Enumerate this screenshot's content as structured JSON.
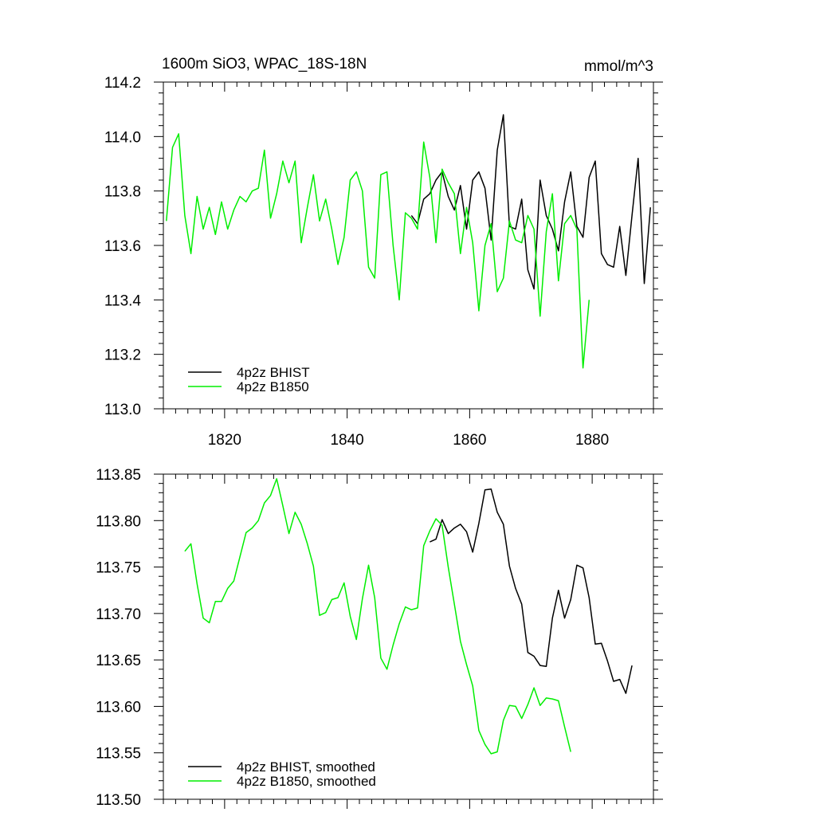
{
  "figure": {
    "title_left": "1600m SiO3, WPAC_18S-18N",
    "title_right": "mmol/m^3"
  },
  "colors": {
    "bhist": "#000000",
    "b1850": "#00ee00"
  },
  "chart_data": [
    {
      "type": "line",
      "title": "1600m SiO3, WPAC_18S-18N",
      "units": "mmol/m^3",
      "xlim": [
        1810,
        1890
      ],
      "ylim": [
        113.0,
        114.2
      ],
      "x_ticks": [
        1820,
        1840,
        1860,
        1880
      ],
      "x_tick_labels": [
        "1820",
        "1840",
        "1860",
        "1880"
      ],
      "y_ticks": [
        113.0,
        113.2,
        113.4,
        113.6,
        113.8,
        114.0,
        114.2
      ],
      "y_tick_labels": [
        "113.0",
        "113.2",
        "113.4",
        "113.6",
        "113.8",
        "114.0",
        "114.2"
      ],
      "grid": false,
      "legend_position": "bottom-left",
      "series": [
        {
          "name": "4p2z BHIST",
          "color_key": "bhist",
          "x": [
            1850.5,
            1851.5,
            1852.5,
            1853.5,
            1854.5,
            1855.5,
            1856.5,
            1857.5,
            1858.5,
            1859.5,
            1860.5,
            1861.5,
            1862.5,
            1863.5,
            1864.5,
            1865.5,
            1866.5,
            1867.5,
            1868.5,
            1869.5,
            1870.5,
            1871.5,
            1872.5,
            1873.5,
            1874.5,
            1875.5,
            1876.5,
            1877.5,
            1878.5,
            1879.5,
            1880.5,
            1881.5,
            1882.5,
            1883.5,
            1884.5,
            1885.5,
            1886.5,
            1887.5,
            1888.5,
            1889.5
          ],
          "y": [
            113.71,
            113.68,
            113.77,
            113.79,
            113.84,
            113.87,
            113.78,
            113.73,
            113.82,
            113.66,
            113.84,
            113.87,
            113.81,
            113.62,
            113.95,
            114.08,
            113.67,
            113.66,
            113.77,
            113.51,
            113.44,
            113.84,
            113.71,
            113.66,
            113.58,
            113.76,
            113.87,
            113.67,
            113.63,
            113.85,
            113.91,
            113.57,
            113.53,
            113.52,
            113.67,
            113.49,
            113.71,
            113.92,
            113.46,
            113.74
          ]
        },
        {
          "name": "4p2z B1850",
          "color_key": "b1850",
          "x": [
            1810.5,
            1811.5,
            1812.5,
            1813.5,
            1814.5,
            1815.5,
            1816.5,
            1817.5,
            1818.5,
            1819.5,
            1820.5,
            1821.5,
            1822.5,
            1823.5,
            1824.5,
            1825.5,
            1826.5,
            1827.5,
            1828.5,
            1829.5,
            1830.5,
            1831.5,
            1832.5,
            1833.5,
            1834.5,
            1835.5,
            1836.5,
            1837.5,
            1838.5,
            1839.5,
            1840.5,
            1841.5,
            1842.5,
            1843.5,
            1844.5,
            1845.5,
            1846.5,
            1847.5,
            1848.5,
            1849.5,
            1850.5,
            1851.5,
            1852.5,
            1853.5,
            1854.5,
            1855.5,
            1856.5,
            1857.5,
            1858.5,
            1859.5,
            1860.5,
            1861.5,
            1862.5,
            1863.5,
            1864.5,
            1865.5,
            1866.5,
            1867.5,
            1868.5,
            1869.5,
            1870.5,
            1871.5,
            1872.5,
            1873.5,
            1874.5,
            1875.5,
            1876.5,
            1877.5,
            1878.5,
            1879.5
          ],
          "y": [
            113.69,
            113.96,
            114.01,
            113.71,
            113.57,
            113.78,
            113.66,
            113.74,
            113.64,
            113.76,
            113.66,
            113.73,
            113.78,
            113.76,
            113.8,
            113.81,
            113.95,
            113.7,
            113.79,
            113.91,
            113.83,
            113.91,
            113.61,
            113.74,
            113.86,
            113.69,
            113.77,
            113.66,
            113.53,
            113.63,
            113.84,
            113.87,
            113.8,
            113.52,
            113.48,
            113.86,
            113.87,
            113.6,
            113.4,
            113.72,
            113.7,
            113.66,
            113.98,
            113.85,
            113.61,
            113.88,
            113.83,
            113.79,
            113.57,
            113.74,
            113.61,
            113.36,
            113.6,
            113.68,
            113.43,
            113.48,
            113.69,
            113.62,
            113.61,
            113.71,
            113.66,
            113.34,
            113.65,
            113.79,
            113.47,
            113.68,
            113.71,
            113.66,
            113.15,
            113.4
          ]
        }
      ]
    },
    {
      "type": "line",
      "xlim": [
        1810,
        1890
      ],
      "ylim": [
        113.5,
        113.85
      ],
      "x_ticks": [
        1820,
        1840,
        1860,
        1880
      ],
      "x_tick_labels": [],
      "y_ticks": [
        113.5,
        113.55,
        113.6,
        113.65,
        113.7,
        113.75,
        113.8,
        113.85
      ],
      "y_tick_labels": [
        "113.50",
        "113.55",
        "113.60",
        "113.65",
        "113.70",
        "113.75",
        "113.80",
        "113.85"
      ],
      "grid": false,
      "legend_position": "bottom-left",
      "series": [
        {
          "name": "4p2z BHIST, smoothed",
          "color_key": "bhist",
          "x": [
            1853.5,
            1854.5,
            1855.5,
            1856.5,
            1857.5,
            1858.5,
            1859.5,
            1860.5,
            1861.5,
            1862.5,
            1863.5,
            1864.5,
            1865.5,
            1866.5,
            1867.5,
            1868.5,
            1869.5,
            1870.5,
            1871.5,
            1872.5,
            1873.5,
            1874.5,
            1875.5,
            1876.5,
            1877.5,
            1878.5,
            1879.5,
            1880.5,
            1881.5,
            1882.5,
            1883.5,
            1884.5,
            1885.5,
            1886.5
          ],
          "y": [
            113.777,
            113.78,
            113.801,
            113.786,
            113.792,
            113.796,
            113.788,
            113.766,
            113.797,
            113.833,
            113.834,
            113.809,
            113.796,
            113.751,
            113.727,
            113.71,
            113.658,
            113.654,
            113.644,
            113.643,
            113.695,
            113.725,
            113.695,
            113.715,
            113.752,
            113.749,
            113.717,
            113.667,
            113.668,
            113.649,
            113.627,
            113.629,
            113.614,
            113.644
          ]
        },
        {
          "name": "4p2z B1850, smoothed",
          "color_key": "b1850",
          "x": [
            1813.5,
            1814.5,
            1815.5,
            1816.5,
            1817.5,
            1818.5,
            1819.5,
            1820.5,
            1821.5,
            1822.5,
            1823.5,
            1824.5,
            1825.5,
            1826.5,
            1827.5,
            1828.5,
            1829.5,
            1830.5,
            1831.5,
            1832.5,
            1833.5,
            1834.5,
            1835.5,
            1836.5,
            1837.5,
            1838.5,
            1839.5,
            1840.5,
            1841.5,
            1842.5,
            1843.5,
            1844.5,
            1845.5,
            1846.5,
            1847.5,
            1848.5,
            1849.5,
            1850.5,
            1851.5,
            1852.5,
            1853.5,
            1854.5,
            1855.5,
            1856.5,
            1857.5,
            1858.5,
            1859.5,
            1860.5,
            1861.5,
            1862.5,
            1863.5,
            1864.5,
            1865.5,
            1866.5,
            1867.5,
            1868.5,
            1869.5,
            1870.5,
            1871.5,
            1872.5,
            1873.5,
            1874.5,
            1875.5,
            1876.5
          ],
          "y": [
            113.767,
            113.775,
            113.732,
            113.695,
            113.69,
            113.713,
            113.713,
            113.727,
            113.735,
            113.761,
            113.787,
            113.792,
            113.8,
            113.819,
            113.827,
            113.845,
            113.816,
            113.786,
            113.809,
            113.796,
            113.775,
            113.751,
            113.698,
            113.701,
            113.715,
            113.717,
            113.733,
            113.697,
            113.672,
            113.716,
            113.752,
            113.717,
            113.652,
            113.64,
            113.666,
            113.689,
            113.707,
            113.704,
            113.706,
            113.773,
            113.789,
            113.802,
            113.795,
            113.75,
            113.71,
            113.67,
            113.645,
            113.622,
            113.574,
            113.559,
            113.549,
            113.551,
            113.585,
            113.601,
            113.6,
            113.587,
            113.602,
            113.62,
            113.601,
            113.609,
            113.608,
            113.606,
            113.578,
            113.551
          ]
        }
      ]
    }
  ]
}
